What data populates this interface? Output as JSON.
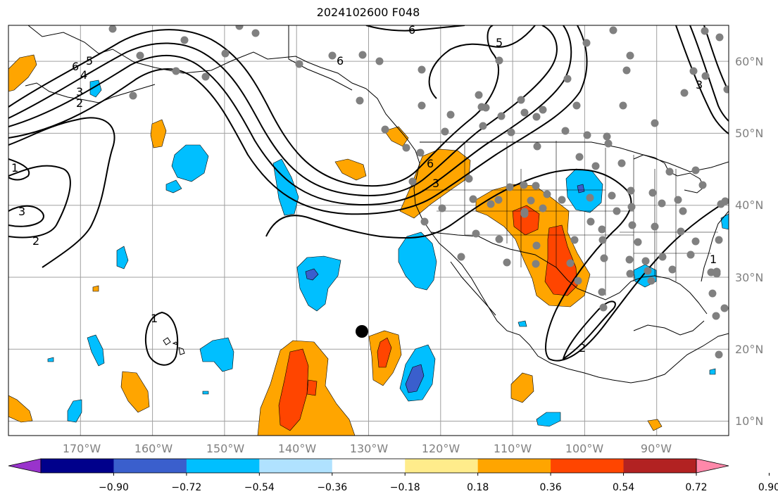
{
  "title": "2024102600 F048",
  "map": {
    "projection": "plate-carree",
    "lon_range": [
      -180,
      -80
    ],
    "lat_range": [
      8,
      65
    ],
    "grid": true,
    "lon_ticks": [
      "170°W",
      "160°W",
      "150°W",
      "140°W",
      "130°W",
      "120°W",
      "110°W",
      "100°W",
      "90°W"
    ],
    "lat_ticks": [
      "60°N",
      "50°N",
      "40°N",
      "30°N",
      "20°N",
      "10°N"
    ],
    "lon_tick_values": [
      -170,
      -160,
      -150,
      -140,
      -130,
      -120,
      -110,
      -100,
      -90
    ],
    "lat_tick_values": [
      60,
      50,
      40,
      30,
      20,
      10
    ],
    "contour_labels": [
      "6",
      "5",
      "4",
      "3",
      "2",
      "1",
      "1",
      "2",
      "3",
      "6",
      "3",
      "6",
      "5",
      "6",
      "3",
      "1",
      "2"
    ],
    "marker_color": "#000000",
    "station_color": "#808080"
  },
  "colorbar": {
    "colors": [
      "#9933cc",
      "#00008b",
      "#3a5fcd",
      "#00bfff",
      "#b0e2ff",
      "#ffffff",
      "#ffec8b",
      "#ffa500",
      "#ff4500",
      "#b22222",
      "#ff88aa"
    ],
    "tick_labels": [
      "−0.90",
      "−0.72",
      "−0.54",
      "−0.36",
      "−0.18",
      "0.18",
      "0.36",
      "0.54",
      "0.72",
      "0.90"
    ]
  }
}
